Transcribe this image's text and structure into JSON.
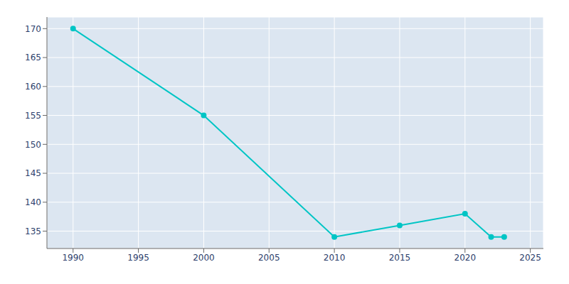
{
  "chart_data": {
    "type": "line",
    "x": [
      1990,
      2000,
      2010,
      2015,
      2020,
      2022,
      2023
    ],
    "values": [
      170,
      155,
      134,
      136,
      138,
      134,
      134
    ],
    "color": "#00C5C5",
    "marker": "circle",
    "xlim": [
      1988,
      2026
    ],
    "ylim": [
      132,
      172
    ],
    "xticks": [
      1990,
      1995,
      2000,
      2005,
      2010,
      2015,
      2020,
      2025
    ],
    "yticks": [
      135,
      140,
      145,
      150,
      155,
      160,
      165,
      170
    ],
    "grid": true
  }
}
